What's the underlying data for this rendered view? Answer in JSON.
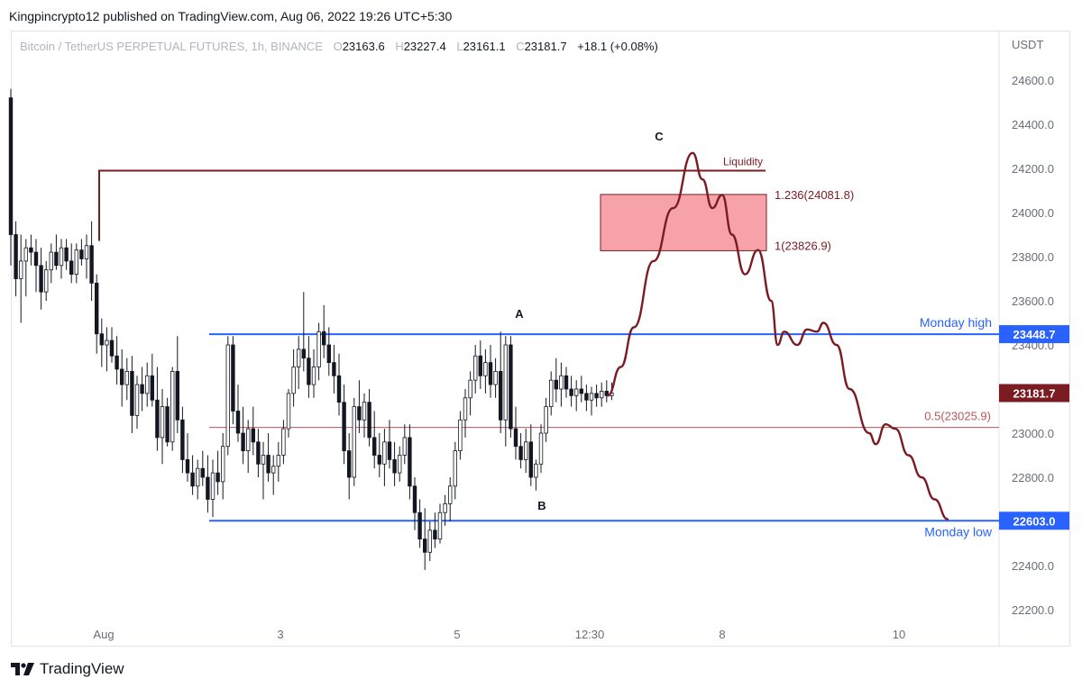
{
  "header": {
    "published_text": "Kingpincrypto12 published on TradingView.com, Aug 06, 2022 19:26 UTC+5:30"
  },
  "legend": {
    "symbol": "Bitcoin / TetherUS PERPETUAL FUTURES, 1h, BINANCE",
    "open_label": "O",
    "open": "23163.6",
    "high_label": "H",
    "high": "23227.4",
    "low_label": "L",
    "low": "23161.1",
    "close_label": "C",
    "close": "23181.7",
    "change": "+18.1 (+0.08%)"
  },
  "footer": {
    "brand": "TradingView",
    "logo_icon": "tradingview-logo-icon"
  },
  "colors": {
    "candle": "#131722",
    "level_blue": "#2962ff",
    "projection": "#7b1b22",
    "liquidity": "#7b1b22",
    "zone_fill": "#f7a1a8",
    "midline": "#b8555c",
    "price_tag": "#7b1b22",
    "axis_text": "#6a6d78"
  },
  "chart_data": {
    "type": "candlestick",
    "title": "Bitcoin / TetherUS PERPETUAL FUTURES, 1h, BINANCE",
    "currency": "USDT",
    "ylim": [
      22100,
      24800
    ],
    "y_ticks": [
      "24600.0",
      "24400.0",
      "24200.0",
      "24000.0",
      "23800.0",
      "23600.0",
      "23400.0",
      "23200.0",
      "23000.0",
      "22800.0",
      "22600.0",
      "22400.0",
      "22200.0"
    ],
    "x_labels": [
      {
        "label": "Aug",
        "slot": 0
      },
      {
        "label": "3",
        "slot": 2
      },
      {
        "label": "5",
        "slot": 4
      },
      {
        "label": "12:30",
        "slot": 5.5
      },
      {
        "label": "8",
        "slot": 7
      },
      {
        "label": "10",
        "slot": 9
      }
    ],
    "grid": false,
    "candles": [
      [
        24520,
        24560,
        23760,
        23900
      ],
      [
        23900,
        23960,
        23620,
        23700
      ],
      [
        23700,
        23900,
        23500,
        23780
      ],
      [
        23780,
        23880,
        23620,
        23840
      ],
      [
        23840,
        23900,
        23760,
        23820
      ],
      [
        23820,
        23880,
        23640,
        23760
      ],
      [
        23760,
        23840,
        23560,
        23640
      ],
      [
        23640,
        23780,
        23600,
        23740
      ],
      [
        23740,
        23860,
        23680,
        23820
      ],
      [
        23820,
        23900,
        23740,
        23760
      ],
      [
        23760,
        23880,
        23700,
        23840
      ],
      [
        23840,
        23880,
        23740,
        23780
      ],
      [
        23780,
        23860,
        23680,
        23720
      ],
      [
        23720,
        23860,
        23680,
        23830
      ],
      [
        23830,
        23880,
        23760,
        23790
      ],
      [
        23790,
        23900,
        23700,
        23850
      ],
      [
        23850,
        23960,
        23600,
        23680
      ],
      [
        23680,
        23720,
        23360,
        23450
      ],
      [
        23450,
        23520,
        23300,
        23400
      ],
      [
        23400,
        23480,
        23280,
        23420
      ],
      [
        23420,
        23480,
        23320,
        23350
      ],
      [
        23350,
        23440,
        23220,
        23290
      ],
      [
        23290,
        23380,
        23120,
        23220
      ],
      [
        23220,
        23340,
        23150,
        23280
      ],
      [
        23280,
        23350,
        23000,
        23080
      ],
      [
        23080,
        23260,
        23020,
        23220
      ],
      [
        23220,
        23300,
        23100,
        23180
      ],
      [
        23180,
        23320,
        23120,
        23260
      ],
      [
        23260,
        23360,
        23120,
        23150
      ],
      [
        23150,
        23300,
        22920,
        22980
      ],
      [
        22980,
        23200,
        22860,
        23120
      ],
      [
        23120,
        23160,
        22940,
        22960
      ],
      [
        22960,
        23300,
        22920,
        23280
      ],
      [
        23280,
        23440,
        23000,
        23060
      ],
      [
        23060,
        23120,
        22820,
        22880
      ],
      [
        22880,
        23000,
        22780,
        22820
      ],
      [
        22820,
        22900,
        22720,
        22760
      ],
      [
        22760,
        22880,
        22700,
        22840
      ],
      [
        22840,
        22920,
        22760,
        22800
      ],
      [
        22800,
        22900,
        22640,
        22700
      ],
      [
        22700,
        22880,
        22620,
        22820
      ],
      [
        22820,
        22920,
        22720,
        22780
      ],
      [
        22780,
        23000,
        22700,
        22940
      ],
      [
        22940,
        23440,
        22900,
        23400
      ],
      [
        23400,
        23440,
        23040,
        23100
      ],
      [
        23100,
        23220,
        22960,
        23000
      ],
      [
        23000,
        23120,
        22860,
        22920
      ],
      [
        22920,
        23060,
        22820,
        23020
      ],
      [
        23020,
        23120,
        22900,
        22960
      ],
      [
        22960,
        23020,
        22800,
        22860
      ],
      [
        22860,
        22960,
        22700,
        22900
      ],
      [
        22900,
        23000,
        22780,
        22820
      ],
      [
        22820,
        22900,
        22720,
        22850
      ],
      [
        22850,
        22960,
        22780,
        22900
      ],
      [
        22900,
        23060,
        22860,
        23020
      ],
      [
        23020,
        23200,
        22980,
        23180
      ],
      [
        23180,
        23380,
        23120,
        23300
      ],
      [
        23300,
        23440,
        23200,
        23380
      ],
      [
        23380,
        23640,
        23280,
        23340
      ],
      [
        23340,
        23440,
        23160,
        23220
      ],
      [
        23220,
        23380,
        23160,
        23300
      ],
      [
        23300,
        23500,
        23240,
        23460
      ],
      [
        23460,
        23580,
        23340,
        23400
      ],
      [
        23400,
        23480,
        23260,
        23320
      ],
      [
        23320,
        23400,
        23180,
        23260
      ],
      [
        23260,
        23360,
        23080,
        23140
      ],
      [
        23140,
        23220,
        22860,
        22920
      ],
      [
        22920,
        23000,
        22700,
        22800
      ],
      [
        22800,
        23160,
        22760,
        23120
      ],
      [
        23120,
        23240,
        23000,
        23060
      ],
      [
        23060,
        23180,
        22980,
        23140
      ],
      [
        23140,
        23200,
        22940,
        22980
      ],
      [
        22980,
        23100,
        22840,
        22900
      ],
      [
        22900,
        23000,
        22800,
        22860
      ],
      [
        22860,
        23020,
        22760,
        22960
      ],
      [
        22960,
        23060,
        22840,
        22880
      ],
      [
        22880,
        22960,
        22760,
        22820
      ],
      [
        22820,
        22940,
        22780,
        22900
      ],
      [
        22900,
        23040,
        22860,
        22980
      ],
      [
        22980,
        23040,
        22700,
        22760
      ],
      [
        22760,
        22800,
        22560,
        22640
      ],
      [
        22640,
        22700,
        22480,
        22520
      ],
      [
        22520,
        22660,
        22380,
        22460
      ],
      [
        22460,
        22600,
        22420,
        22560
      ],
      [
        22560,
        22640,
        22480,
        22520
      ],
      [
        22520,
        22680,
        22500,
        22640
      ],
      [
        22640,
        22720,
        22580,
        22680
      ],
      [
        22680,
        22800,
        22600,
        22760
      ],
      [
        22760,
        22960,
        22700,
        22920
      ],
      [
        22920,
        23100,
        22880,
        23060
      ],
      [
        23060,
        23200,
        22980,
        23160
      ],
      [
        23160,
        23280,
        23080,
        23240
      ],
      [
        23240,
        23400,
        23180,
        23350
      ],
      [
        23350,
        23420,
        23200,
        23260
      ],
      [
        23260,
        23380,
        23180,
        23320
      ],
      [
        23320,
        23400,
        23160,
        23220
      ],
      [
        23220,
        23340,
        23160,
        23280
      ],
      [
        23280,
        23460,
        23000,
        23060
      ],
      [
        23060,
        23440,
        22940,
        23400
      ],
      [
        23400,
        23440,
        22980,
        23020
      ],
      [
        23020,
        23120,
        22880,
        22940
      ],
      [
        22940,
        23000,
        22840,
        22880
      ],
      [
        22880,
        23020,
        22820,
        22960
      ],
      [
        22960,
        23040,
        22760,
        22800
      ],
      [
        22800,
        22880,
        22740,
        22860
      ],
      [
        22860,
        23040,
        22820,
        23000
      ],
      [
        23000,
        23160,
        22960,
        23120
      ],
      [
        23120,
        23280,
        23080,
        23240
      ],
      [
        23240,
        23340,
        23140,
        23200
      ],
      [
        23200,
        23320,
        23120,
        23260
      ],
      [
        23260,
        23300,
        23160,
        23200
      ],
      [
        23200,
        23260,
        23120,
        23170
      ],
      [
        23170,
        23240,
        23100,
        23200
      ],
      [
        23200,
        23260,
        23140,
        23180
      ],
      [
        23180,
        23220,
        23100,
        23150
      ],
      [
        23150,
        23210,
        23080,
        23180
      ],
      [
        23180,
        23220,
        23120,
        23160
      ],
      [
        23160,
        23230,
        23120,
        23190
      ],
      [
        23190,
        23240,
        23140,
        23170
      ],
      [
        23170,
        23230,
        23150,
        23182
      ]
    ],
    "projection_path": [
      [
        23170,
        0
      ],
      [
        23300,
        2
      ],
      [
        23480,
        4
      ],
      [
        23780,
        7
      ],
      [
        24020,
        10
      ],
      [
        24270,
        13
      ],
      [
        24150,
        14.5
      ],
      [
        24020,
        16
      ],
      [
        24080,
        17.5
      ],
      [
        23900,
        19
      ],
      [
        23720,
        21
      ],
      [
        23830,
        23
      ],
      [
        23600,
        25
      ],
      [
        23400,
        26
      ],
      [
        23460,
        27
      ],
      [
        23400,
        29
      ],
      [
        23470,
        30.5
      ],
      [
        23460,
        32
      ],
      [
        23500,
        33
      ],
      [
        23400,
        35
      ],
      [
        23200,
        37
      ],
      [
        23000,
        40
      ],
      [
        22950,
        41
      ],
      [
        23040,
        42.5
      ],
      [
        23020,
        44
      ],
      [
        22900,
        46
      ],
      [
        22800,
        48
      ],
      [
        22700,
        50
      ],
      [
        22610,
        52
      ]
    ],
    "levels": [
      {
        "name": "Monday high",
        "price": 23448.7,
        "price_label": "23448.7",
        "label": "Monday high",
        "color": "#2962ff"
      },
      {
        "name": "Monday low",
        "price": 22603.0,
        "price_label": "22603.0",
        "label": "Monday low",
        "color": "#2962ff"
      },
      {
        "name": "Liquidity",
        "price": 24190,
        "label": "Liquidity",
        "color": "#7b1b22"
      },
      {
        "name": "fib-0.5",
        "price": 23025.9,
        "label": "0.5(23025.9)",
        "color": "#b8555c"
      }
    ],
    "zone": {
      "top": 24081.8,
      "bottom": 23826.9,
      "top_label": "1.236(24081.8)",
      "bottom_label": "1(23826.9)"
    },
    "current_price": {
      "value": 23181.7,
      "label": "23181.7"
    },
    "wave_labels": [
      {
        "text": "A",
        "price": 23450
      },
      {
        "text": "B",
        "price": 22600
      },
      {
        "text": "C",
        "price": 24300
      }
    ]
  }
}
